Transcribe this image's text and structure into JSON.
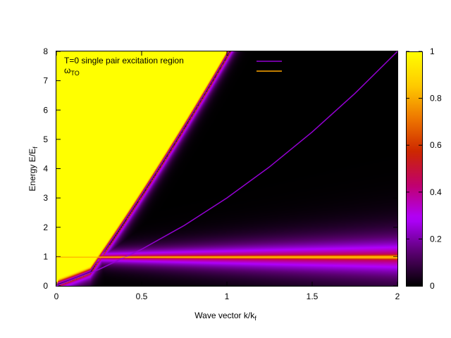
{
  "chart_data": {
    "type": "heatmap",
    "xlabel": "Wave vector k/k",
    "xlabel_sub": "f",
    "ylabel": "Energy E/E",
    "ylabel_sub": "f",
    "xlim": [
      0,
      2
    ],
    "ylim": [
      0,
      8
    ],
    "x_ticks": [
      0,
      0.5,
      1,
      1.5,
      2
    ],
    "x_tick_labels": [
      "0",
      "0.5",
      "1",
      "1.5",
      "2"
    ],
    "y_ticks": [
      0,
      1,
      2,
      3,
      4,
      5,
      6,
      7,
      8
    ],
    "y_tick_labels": [
      "0",
      "1",
      "2",
      "3",
      "4",
      "5",
      "6",
      "7",
      "8"
    ],
    "colorbar": {
      "range": [
        0,
        1
      ],
      "ticks": [
        0,
        0.2,
        0.4,
        0.6,
        0.8,
        1
      ],
      "tick_labels": [
        "0",
        "0.2",
        "0.4",
        "0.6",
        "0.8",
        "1"
      ],
      "palette": [
        "#000000",
        "#5a0070",
        "#b000ff",
        "#c0006e",
        "#cc2600",
        "#ee7700",
        "#ffcc00",
        "#ffff00"
      ]
    },
    "legend": {
      "placement": "top-left",
      "entries": [
        {
          "label": "T=0 single pair excitation region",
          "color": "#9400d3"
        },
        {
          "label": "ω",
          "label_sub": "TO",
          "color": "#ffa500"
        }
      ]
    },
    "series": [
      {
        "label_ref": "T=0 single pair excitation region",
        "type": "line",
        "color": "#9400d3",
        "x": [
          0,
          0.25,
          0.5,
          0.75,
          1.0,
          1.25,
          1.5,
          1.75,
          2.0
        ],
        "y": [
          0,
          0.5625,
          1.25,
          2.0625,
          3.0,
          4.0625,
          5.25,
          6.5625,
          8.0
        ]
      },
      {
        "label_ref": "ω_TO",
        "type": "line",
        "color": "#ffa500",
        "x": [
          0,
          2
        ],
        "y": [
          0.98,
          0.98
        ]
      }
    ],
    "heatmap_features": {
      "bright_region_boundary": "E = k^2 + 2k",
      "shoulder_onset_k": 0.2,
      "phonon_energy": 0.98
    }
  }
}
